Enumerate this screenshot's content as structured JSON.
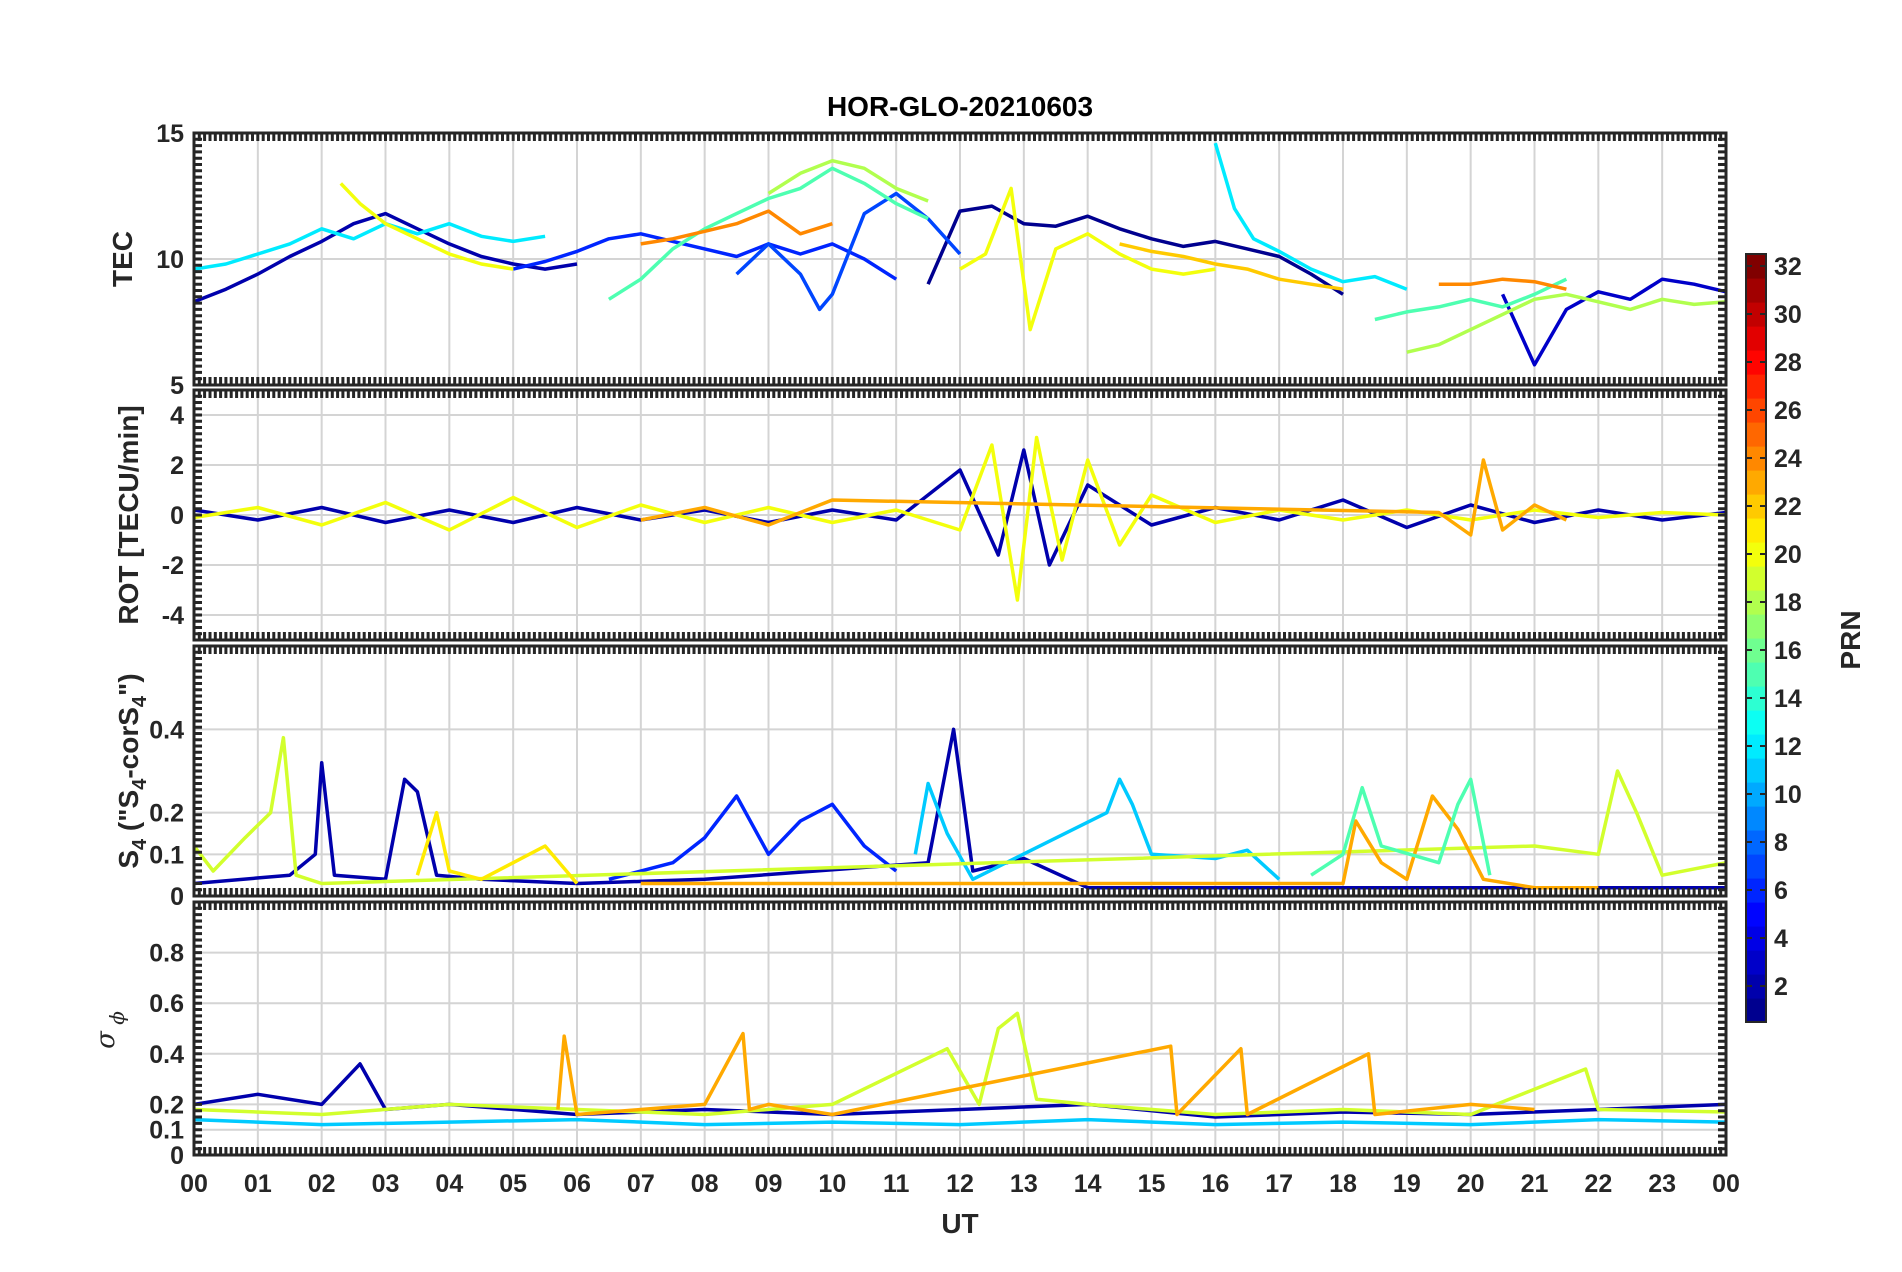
{
  "title": "HOR-GLO-20210603",
  "colors": {
    "grid": "#d4d4d4",
    "axis": "#262626",
    "colormap": [
      "#00008f",
      "#0000ff",
      "#0080ff",
      "#00ffff",
      "#80ff80",
      "#ffff00",
      "#ff8000",
      "#ff0000",
      "#800000"
    ]
  },
  "chart_data": [
    {
      "type": "line",
      "panel": "TEC",
      "ylabel": "TEC",
      "ylim": [
        5,
        15
      ],
      "yticks": [
        "5",
        "10",
        "15"
      ],
      "grid": true,
      "series": [
        {
          "prn": 2,
          "x": [
            0.0,
            0.5,
            1.0,
            1.5,
            2.0,
            2.5,
            3.0,
            3.5,
            4.0,
            4.5,
            5.0,
            5.5,
            6.0
          ],
          "values": [
            8.3,
            8.8,
            9.4,
            10.1,
            10.7,
            11.4,
            11.8,
            11.2,
            10.6,
            10.1,
            9.8,
            9.6,
            9.8
          ]
        },
        {
          "prn": 1,
          "x": [
            11.5,
            12.0,
            12.5,
            13.0,
            13.5,
            14.0,
            14.5,
            15.0,
            15.5,
            16.0,
            16.5,
            17.0,
            17.5,
            18.0
          ],
          "values": [
            9.0,
            11.9,
            12.1,
            11.4,
            11.3,
            11.7,
            11.2,
            10.8,
            10.5,
            10.7,
            10.4,
            10.1,
            9.4,
            8.6
          ]
        },
        {
          "prn": 3,
          "x": [
            20.5,
            21.0,
            21.5,
            22.0,
            22.5,
            23.0,
            23.5,
            24.0
          ],
          "values": [
            8.6,
            5.8,
            8.0,
            8.7,
            8.4,
            9.2,
            9.0,
            8.7
          ]
        },
        {
          "prn": 6,
          "x": [
            5.0,
            5.5,
            6.0,
            6.5,
            7.0,
            7.5,
            8.0,
            8.5,
            9.0,
            9.5,
            10.0,
            10.5,
            11.0
          ],
          "values": [
            9.6,
            9.9,
            10.3,
            10.8,
            11.0,
            10.7,
            10.4,
            10.1,
            10.6,
            10.2,
            10.6,
            10.0,
            9.2
          ]
        },
        {
          "prn": 7,
          "x": [
            8.5,
            9.0,
            9.5,
            9.8,
            10.0,
            10.5,
            11.0,
            11.5,
            12.0
          ],
          "values": [
            9.4,
            10.6,
            9.4,
            8.0,
            8.6,
            11.8,
            12.6,
            11.6,
            10.2
          ]
        },
        {
          "prn": 12,
          "x": [
            0.0,
            0.5,
            1.0,
            1.5,
            2.0,
            2.5,
            3.0,
            3.5,
            4.0,
            4.5,
            5.0,
            5.5
          ],
          "values": [
            9.6,
            9.8,
            10.2,
            10.6,
            11.2,
            10.8,
            11.4,
            11.0,
            11.4,
            10.9,
            10.7,
            10.9
          ]
        },
        {
          "prn": 12,
          "x": [
            16.0,
            16.3,
            16.6,
            17.0,
            17.5,
            18.0,
            18.5,
            19.0
          ],
          "values": [
            14.6,
            12.0,
            10.8,
            10.3,
            9.6,
            9.1,
            9.3,
            8.8
          ]
        },
        {
          "prn": 15,
          "x": [
            6.5,
            7.0,
            7.5,
            8.0,
            8.5,
            9.0,
            9.5,
            10.0,
            10.5,
            11.0,
            11.5
          ],
          "values": [
            8.4,
            9.2,
            10.4,
            11.2,
            11.8,
            12.4,
            12.8,
            13.6,
            13.0,
            12.2,
            11.6
          ]
        },
        {
          "prn": 15,
          "x": [
            18.5,
            19.0,
            19.5,
            20.0,
            20.5,
            21.0,
            21.5
          ],
          "values": [
            7.6,
            7.9,
            8.1,
            8.4,
            8.1,
            8.6,
            9.2
          ]
        },
        {
          "prn": 18,
          "x": [
            9.0,
            9.5,
            10.0,
            10.5,
            11.0,
            11.5
          ],
          "values": [
            12.6,
            13.4,
            13.9,
            13.6,
            12.8,
            12.3
          ]
        },
        {
          "prn": 18,
          "x": [
            19.0,
            19.5,
            20.0,
            20.5,
            21.0,
            21.5,
            22.0,
            22.5,
            23.0,
            23.5,
            24.0
          ],
          "values": [
            6.3,
            6.6,
            7.2,
            7.8,
            8.4,
            8.6,
            8.3,
            8.0,
            8.4,
            8.2,
            8.3
          ]
        },
        {
          "prn": 20,
          "x": [
            12.0,
            12.4,
            12.8,
            13.1,
            13.5,
            14.0,
            14.5,
            15.0,
            15.5,
            16.0
          ],
          "values": [
            9.6,
            10.2,
            12.8,
            7.2,
            10.4,
            11.0,
            10.2,
            9.6,
            9.4,
            9.6
          ]
        },
        {
          "prn": 20,
          "x": [
            2.3,
            2.6,
            3.0,
            3.5,
            4.0,
            4.5,
            5.0
          ],
          "values": [
            13.0,
            12.2,
            11.4,
            10.8,
            10.2,
            9.8,
            9.6
          ]
        },
        {
          "prn": 24,
          "x": [
            7.0,
            7.5,
            8.0,
            8.5,
            9.0,
            9.5,
            10.0
          ],
          "values": [
            10.6,
            10.8,
            11.1,
            11.4,
            11.9,
            11.0,
            11.4
          ]
        },
        {
          "prn": 24,
          "x": [
            19.5,
            20.0,
            20.5,
            21.0,
            21.5
          ],
          "values": [
            9.0,
            9.0,
            9.2,
            9.1,
            8.8
          ]
        },
        {
          "prn": 22,
          "x": [
            14.5,
            15.0,
            15.5,
            16.0,
            16.5,
            17.0,
            17.5,
            18.0
          ],
          "values": [
            10.6,
            10.3,
            10.1,
            9.8,
            9.6,
            9.2,
            9.0,
            8.8
          ]
        }
      ]
    },
    {
      "type": "line",
      "panel": "ROT",
      "ylabel": "ROT [TECU/min]",
      "ylim": [
        -5,
        5
      ],
      "yticks": [
        "-4",
        "-2",
        "0",
        "2",
        "4"
      ],
      "grid": true,
      "series": [
        {
          "prn": 2,
          "x": [
            0.0,
            1.0,
            2.0,
            3.0,
            4.0,
            5.0,
            6.0,
            7.0,
            8.0,
            9.0,
            10.0,
            11.0,
            12.0,
            12.6,
            13.0,
            13.4,
            14.0,
            15.0,
            16.0,
            17.0,
            18.0,
            19.0,
            20.0,
            21.0,
            22.0,
            23.0,
            24.0
          ],
          "values": [
            0.2,
            -0.2,
            0.3,
            -0.3,
            0.2,
            -0.3,
            0.3,
            -0.2,
            0.2,
            -0.3,
            0.2,
            -0.2,
            1.8,
            -1.6,
            2.6,
            -2.0,
            1.2,
            -0.4,
            0.3,
            -0.2,
            0.6,
            -0.5,
            0.4,
            -0.3,
            0.2,
            -0.2,
            0.1
          ]
        },
        {
          "prn": 20,
          "x": [
            0.0,
            1.0,
            2.0,
            3.0,
            4.0,
            5.0,
            6.0,
            7.0,
            8.0,
            9.0,
            10.0,
            11.0,
            12.0,
            12.5,
            12.9,
            13.2,
            13.6,
            14.0,
            14.5,
            15.0,
            16.0,
            17.0,
            18.0,
            19.0,
            20.0,
            21.0,
            22.0,
            23.0,
            24.0
          ],
          "values": [
            -0.1,
            0.3,
            -0.4,
            0.5,
            -0.6,
            0.7,
            -0.5,
            0.4,
            -0.3,
            0.3,
            -0.3,
            0.2,
            -0.6,
            2.8,
            -3.4,
            3.1,
            -1.8,
            2.2,
            -1.2,
            0.8,
            -0.3,
            0.2,
            -0.2,
            0.2,
            -0.2,
            0.2,
            -0.1,
            0.1,
            0.0
          ]
        },
        {
          "prn": 23,
          "x": [
            7.0,
            8.0,
            9.0,
            10.0,
            19.5,
            20.0,
            20.2,
            20.5,
            21.0,
            21.5
          ],
          "values": [
            -0.2,
            0.3,
            -0.4,
            0.6,
            0.1,
            -0.8,
            2.2,
            -0.6,
            0.4,
            -0.2
          ]
        }
      ]
    },
    {
      "type": "line",
      "panel": "S4",
      "ylabel": "S4 (\"S4-corS4\")",
      "ylim": [
        0,
        0.6
      ],
      "yticks": [
        "0",
        "0.1",
        "0.2",
        "0.4"
      ],
      "grid": true,
      "series": [
        {
          "prn": 2,
          "x": [
            0.0,
            1.5,
            1.9,
            2.0,
            2.2,
            3.0,
            3.3,
            3.5,
            3.8,
            4.5,
            6.0,
            8.0,
            11.5,
            11.9,
            12.2,
            13.0,
            14.0,
            24.0
          ],
          "values": [
            0.03,
            0.05,
            0.1,
            0.32,
            0.05,
            0.04,
            0.28,
            0.25,
            0.05,
            0.04,
            0.03,
            0.04,
            0.08,
            0.4,
            0.06,
            0.09,
            0.02,
            0.02
          ]
        },
        {
          "prn": 6,
          "x": [
            6.5,
            7.5,
            8.0,
            8.5,
            9.0,
            9.5,
            10.0,
            10.5,
            11.0
          ],
          "values": [
            0.04,
            0.08,
            0.14,
            0.24,
            0.1,
            0.18,
            0.22,
            0.12,
            0.06
          ]
        },
        {
          "prn": 11,
          "x": [
            11.3,
            11.5,
            11.8,
            12.2,
            14.3,
            14.5,
            14.7,
            15.0,
            16.0,
            16.5,
            17.0
          ],
          "values": [
            0.1,
            0.27,
            0.15,
            0.04,
            0.2,
            0.28,
            0.22,
            0.1,
            0.09,
            0.11,
            0.04
          ]
        },
        {
          "prn": 19,
          "x": [
            0.0,
            0.3,
            0.8,
            1.2,
            1.4,
            1.6,
            2.0,
            21.0,
            22.0,
            22.3,
            22.6,
            23.0,
            24.0
          ],
          "values": [
            0.12,
            0.06,
            0.14,
            0.2,
            0.38,
            0.05,
            0.03,
            0.12,
            0.1,
            0.3,
            0.2,
            0.05,
            0.08
          ]
        },
        {
          "prn": 23,
          "x": [
            7.0,
            10.0,
            17.0,
            18.0,
            18.2,
            18.6,
            19.0,
            19.4,
            19.8,
            20.2,
            21.0,
            22.0
          ],
          "values": [
            0.03,
            0.03,
            0.03,
            0.03,
            0.18,
            0.08,
            0.04,
            0.24,
            0.16,
            0.04,
            0.02,
            0.02
          ]
        },
        {
          "prn": 15,
          "x": [
            17.5,
            18.0,
            18.3,
            18.6,
            19.5,
            19.8,
            20.0,
            20.3
          ],
          "values": [
            0.05,
            0.1,
            0.26,
            0.12,
            0.08,
            0.22,
            0.28,
            0.05
          ]
        },
        {
          "prn": 21,
          "x": [
            3.5,
            3.8,
            4.0,
            4.5,
            5.0,
            5.5,
            6.0
          ],
          "values": [
            0.05,
            0.2,
            0.06,
            0.04,
            0.08,
            0.12,
            0.03
          ]
        }
      ]
    },
    {
      "type": "line",
      "panel": "sigma_phi",
      "ylabel": "σ ϕ",
      "ylim": [
        0,
        1
      ],
      "yticks": [
        "0",
        "0.1",
        "0.2",
        "0.4",
        "0.6",
        "0.8"
      ],
      "grid": true,
      "series": [
        {
          "prn": 2,
          "x": [
            0.0,
            1.0,
            2.0,
            2.6,
            3.0,
            4.0,
            6.0,
            8.0,
            10.0,
            12.0,
            14.0,
            16.0,
            18.0,
            20.0,
            22.0,
            24.0
          ],
          "values": [
            0.2,
            0.24,
            0.2,
            0.36,
            0.18,
            0.2,
            0.16,
            0.18,
            0.16,
            0.18,
            0.2,
            0.15,
            0.17,
            0.16,
            0.18,
            0.2
          ]
        },
        {
          "prn": 11,
          "x": [
            0.0,
            2.0,
            4.0,
            6.0,
            8.0,
            10.0,
            12.0,
            14.0,
            16.0,
            18.0,
            20.0,
            22.0,
            24.0
          ],
          "values": [
            0.14,
            0.12,
            0.13,
            0.14,
            0.12,
            0.13,
            0.12,
            0.14,
            0.12,
            0.13,
            0.12,
            0.14,
            0.13
          ]
        },
        {
          "prn": 19,
          "x": [
            0.0,
            2.0,
            4.0,
            6.0,
            8.0,
            10.0,
            11.8,
            12.3,
            12.6,
            12.9,
            13.2,
            14.0,
            16.0,
            18.0,
            20.0,
            21.8,
            22.0,
            24.0
          ],
          "values": [
            0.18,
            0.16,
            0.2,
            0.18,
            0.16,
            0.2,
            0.42,
            0.2,
            0.5,
            0.56,
            0.22,
            0.2,
            0.16,
            0.18,
            0.16,
            0.34,
            0.18,
            0.17
          ]
        },
        {
          "prn": 23,
          "x": [
            5.7,
            5.8,
            6.0,
            7.0,
            8.0,
            8.6,
            8.7,
            9.0,
            10.0,
            15.3,
            15.4,
            16.4,
            16.5,
            18.4,
            18.5,
            20.0,
            21.0
          ],
          "values": [
            0.18,
            0.47,
            0.16,
            0.18,
            0.2,
            0.48,
            0.18,
            0.2,
            0.16,
            0.43,
            0.16,
            0.42,
            0.16,
            0.4,
            0.16,
            0.2,
            0.18
          ]
        }
      ]
    }
  ],
  "xaxis": {
    "xlabel": "UT",
    "xlim": [
      0,
      24
    ],
    "ticks": [
      "00",
      "01",
      "02",
      "03",
      "04",
      "05",
      "06",
      "07",
      "08",
      "09",
      "10",
      "11",
      "12",
      "13",
      "14",
      "15",
      "16",
      "17",
      "18",
      "19",
      "20",
      "21",
      "22",
      "23",
      "00"
    ]
  },
  "colorbar": {
    "label": "PRN",
    "range": [
      1,
      32
    ],
    "ticks": [
      "2",
      "4",
      "6",
      "8",
      "10",
      "12",
      "14",
      "16",
      "18",
      "20",
      "22",
      "24",
      "26",
      "28",
      "30",
      "32"
    ]
  }
}
